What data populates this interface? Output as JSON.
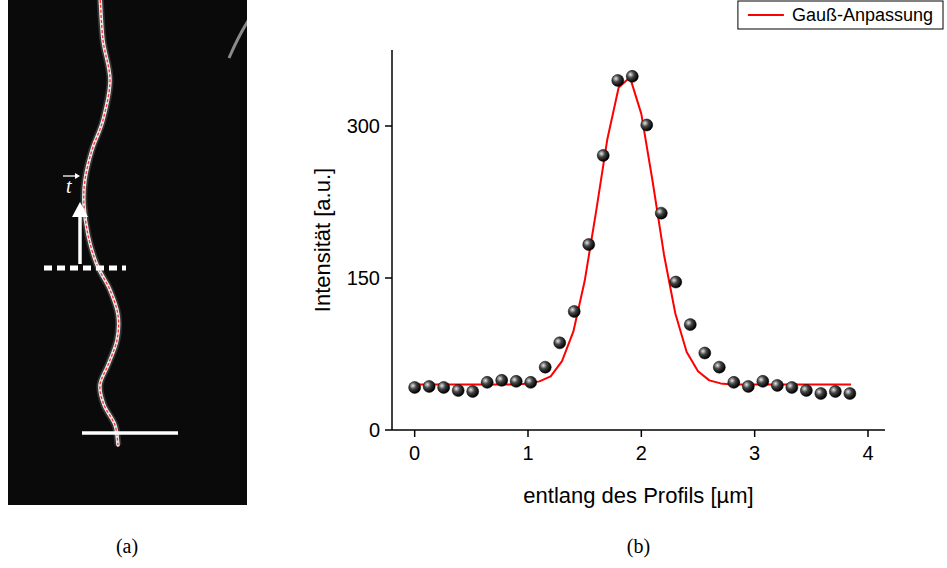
{
  "panel_labels": [
    "(a)",
    "(b)"
  ],
  "image_panel": {
    "vector_label": "t"
  },
  "chart_data": {
    "type": "scatter",
    "x_label": "entlang des Profils [µm]",
    "y_label": "Intensität [a.u.]",
    "xlim": [
      -0.2,
      4.15
    ],
    "ylim": [
      0,
      375
    ],
    "xticks": [
      0,
      1,
      2,
      3,
      4
    ],
    "yticks": [
      0,
      150,
      300
    ],
    "legend": "upper right",
    "series": [
      {
        "type": "scatter",
        "marker": "sphere",
        "color": "#000000",
        "x": [
          0,
          0.128,
          0.256,
          0.384,
          0.512,
          0.64,
          0.768,
          0.896,
          1.024,
          1.152,
          1.28,
          1.408,
          1.536,
          1.664,
          1.792,
          1.92,
          2.048,
          2.176,
          2.304,
          2.432,
          2.56,
          2.688,
          2.816,
          2.944,
          3.072,
          3.2,
          3.328,
          3.456,
          3.584,
          3.712,
          3.84
        ],
        "values": [
          42,
          43,
          42,
          39,
          38,
          47,
          49,
          48,
          47,
          62,
          86,
          117,
          183,
          271,
          345,
          349,
          301,
          214,
          146,
          104,
          76,
          62,
          47,
          43,
          48,
          44,
          42,
          39,
          36,
          38,
          36
        ]
      },
      {
        "name": "Gauß-Anpassung",
        "type": "line",
        "color": "#ff0000",
        "x": [
          0,
          0.1,
          0.2,
          0.3,
          0.4,
          0.5,
          0.6,
          0.7,
          0.8,
          0.9,
          1.0,
          1.1,
          1.2,
          1.3,
          1.4,
          1.5,
          1.6,
          1.7,
          1.8,
          1.9,
          2.0,
          2.1,
          2.2,
          2.3,
          2.4,
          2.5,
          2.6,
          2.7,
          2.8,
          2.9,
          3.0,
          3.1,
          3.2,
          3.3,
          3.4,
          3.5,
          3.6,
          3.7,
          3.8,
          3.85
        ],
        "values": [
          45,
          45,
          45,
          45,
          45,
          45,
          45,
          45,
          45,
          45,
          46,
          48,
          53,
          68,
          97,
          147,
          215,
          287,
          338,
          348,
          312,
          245,
          173,
          115,
          77,
          58,
          49,
          46,
          45,
          45,
          45,
          45,
          45,
          45,
          45,
          45,
          45,
          45,
          45,
          45
        ]
      }
    ]
  }
}
